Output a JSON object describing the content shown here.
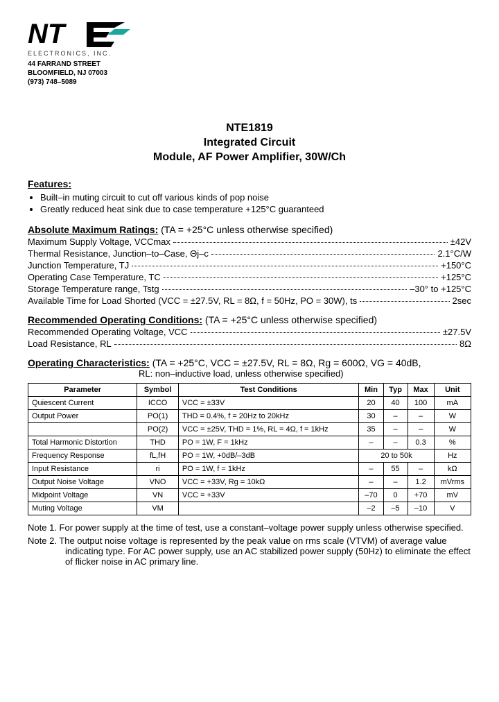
{
  "logo": {
    "company_sub": "ELECTRONICS, INC.",
    "addr1": "44 FARRAND STREET",
    "addr2": "BLOOMFIELD, NJ 07003",
    "addr3": "(973) 748–5089"
  },
  "title": {
    "l1": "NTE1819",
    "l2": "Integrated Circuit",
    "l3": "Module, AF Power Amplifier, 30W/Ch"
  },
  "features": {
    "head": "Features:",
    "b1": "Built–in muting circuit to cut off various kinds of pop noise",
    "b2": "Greatly reduced heat sink due to case temperature +125°C guaranteed"
  },
  "abs": {
    "head_u": "Absolute Maximum Ratings:",
    "head_cond": "  (TA = +25°C unless otherwise specified)",
    "r1l": "Maximum Supply Voltage, VCCmax",
    "r1v": "±42V",
    "r2l": "Thermal Resistance, Junction–to–Case, Θj–c",
    "r2v": "2.1°C/W",
    "r3l": "Junction Temperature, TJ",
    "r3v": "+150°C",
    "r4l": "Operating Case Temperature, TC",
    "r4v": "+125°C",
    "r5l": "Storage Temperature range, Tstg",
    "r5v": "–30° to +125°C",
    "r6l": "Available Time for Load Shorted (VCC = ±27.5V, RL = 8Ω, f = 50Hz, PO = 30W), ts",
    "r6v": "2sec"
  },
  "rec": {
    "head_u": "Recommended Operating Conditions:",
    "head_cond": "  (TA = +25°C unless otherwise specified)",
    "r1l": "Recommended Operating Voltage, VCC",
    "r1v": "±27.5V",
    "r2l": "Load Resistance, RL",
    "r2v": "8Ω"
  },
  "op": {
    "head_u": "Operating Characteristics:",
    "head_cond": "  (TA = +25°C, VCC = ±27.5V, RL = 8Ω, Rg = 600Ω, VG = 40dB,",
    "head_cond2": "RL: non–inductive load,  unless otherwise specified)"
  },
  "table": {
    "colors": {
      "border": "#000000",
      "text": "#000000"
    },
    "headers": [
      "Parameter",
      "Symbol",
      "Test Conditions",
      "Min",
      "Typ",
      "Max",
      "Unit"
    ],
    "rows": [
      {
        "p": "Quiescent Current",
        "s": "ICCO",
        "tc": "VCC = ±33V",
        "min": "20",
        "typ": "40",
        "max": "100",
        "u": "mA"
      },
      {
        "p": "Output Power",
        "s": "PO(1)",
        "tc": "THD = 0.4%,  f = 20Hz to 20kHz",
        "min": "30",
        "typ": "–",
        "max": "–",
        "u": "W"
      },
      {
        "p": "",
        "s": "PO(2)",
        "tc": "VCC = ±25V, THD = 1%, RL = 4Ω, f = 1kHz",
        "min": "35",
        "typ": "–",
        "max": "–",
        "u": "W"
      },
      {
        "p": "Total Harmonic Distortion",
        "s": "THD",
        "tc": "PO = 1W, F = 1kHz",
        "min": "–",
        "typ": "–",
        "max": "0.3",
        "u": "%"
      },
      {
        "p": "Frequency Response",
        "s": "fL,fH",
        "tc": "PO = 1W, +0dB/–3dB",
        "min": "",
        "typ": "20 to 50k",
        "max": "",
        "u": "Hz",
        "span": true
      },
      {
        "p": "Input Resistance",
        "s": "ri",
        "tc": "PO = 1W, f = 1kHz",
        "min": "–",
        "typ": "55",
        "max": "–",
        "u": "kΩ"
      },
      {
        "p": "Output Noise Voltage",
        "s": "VNO",
        "tc": "VCC = +33V, Rg = 10kΩ",
        "min": "–",
        "typ": "–",
        "max": "1.2",
        "u": "mVrms"
      },
      {
        "p": "Midpoint Voltage",
        "s": "VN",
        "tc": "VCC = +33V",
        "min": "–70",
        "typ": "0",
        "max": "+70",
        "u": "mV"
      },
      {
        "p": "Muting Voltage",
        "s": "VM",
        "tc": "",
        "min": "–2",
        "typ": "–5",
        "max": "–10",
        "u": "V"
      }
    ]
  },
  "notes": {
    "n1": "Note  1. For power supply at the time of test, use a constant–voltage power supply unless otherwise specified.",
    "n2": "Note  2. The output noise voltage is represented by the peak value on rms scale (VTVM) of average value indicating type.  For AC power supply, use an AC stabilized power supply (50Hz) to eliminate the effect of flicker noise in AC primary line."
  }
}
